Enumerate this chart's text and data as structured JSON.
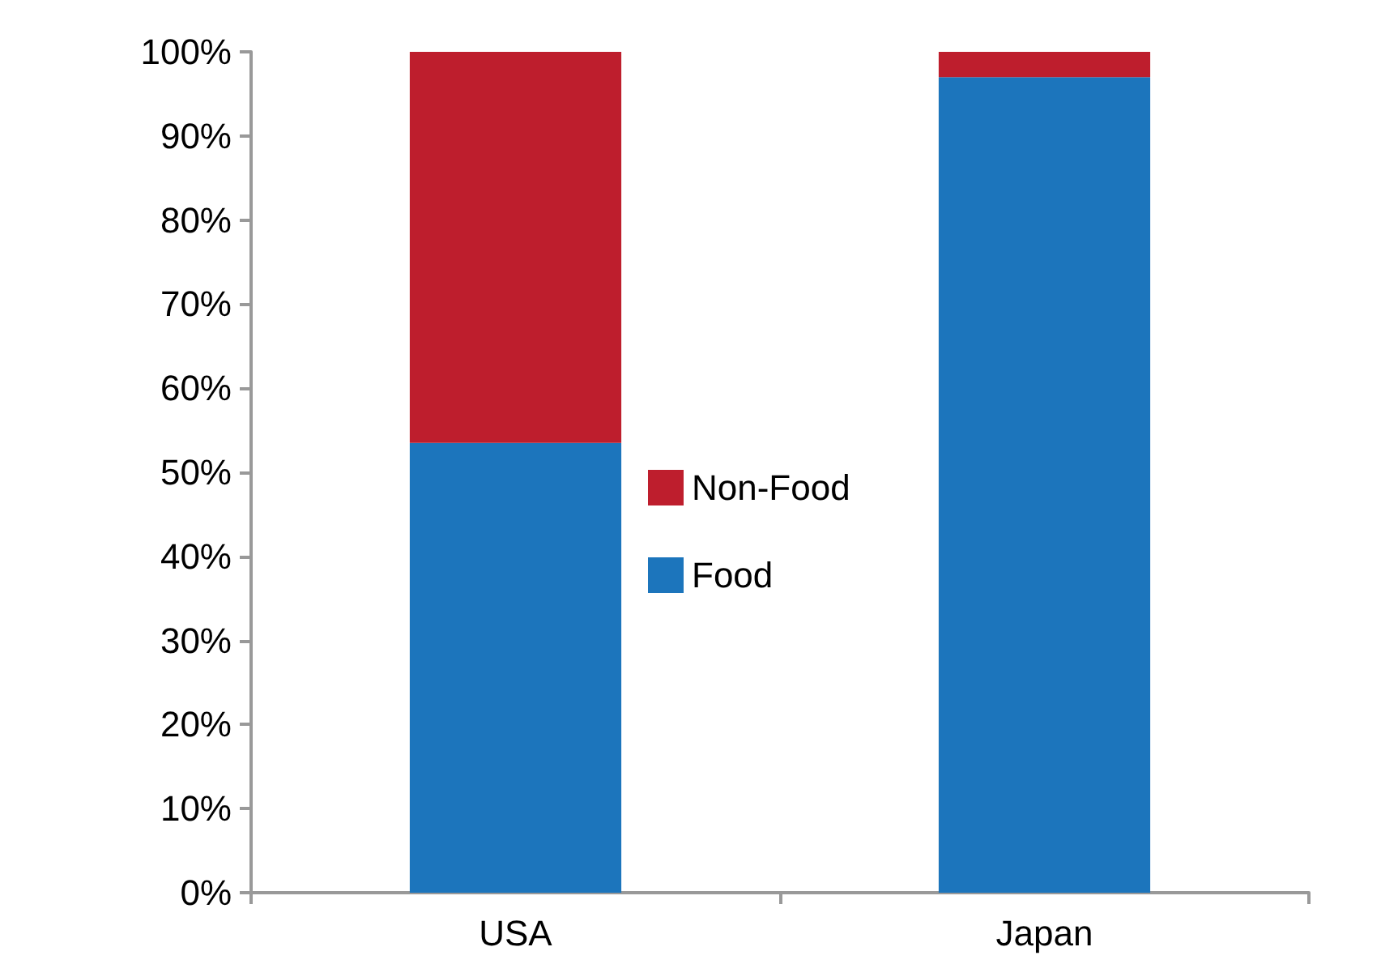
{
  "chart_data": {
    "type": "bar",
    "stacked": true,
    "categories": [
      "USA",
      "Japan"
    ],
    "series": [
      {
        "name": "Food",
        "color": "#1c75bc",
        "values": [
          53.5,
          97.0
        ]
      },
      {
        "name": "Non-Food",
        "color": "#be1e2d",
        "values": [
          46.5,
          3.0
        ]
      }
    ],
    "ylim": [
      0,
      100
    ],
    "yticks": [
      {
        "value": 0,
        "label": "0%"
      },
      {
        "value": 10,
        "label": "10%"
      },
      {
        "value": 20,
        "label": "20%"
      },
      {
        "value": 30,
        "label": "30%"
      },
      {
        "value": 40,
        "label": "40%"
      },
      {
        "value": 50,
        "label": "50%"
      },
      {
        "value": 60,
        "label": "60%"
      },
      {
        "value": 70,
        "label": "70%"
      },
      {
        "value": 80,
        "label": "80%"
      },
      {
        "value": 90,
        "label": "90%"
      },
      {
        "value": 100,
        "label": "100%"
      }
    ],
    "grid": false,
    "legend": "center"
  }
}
